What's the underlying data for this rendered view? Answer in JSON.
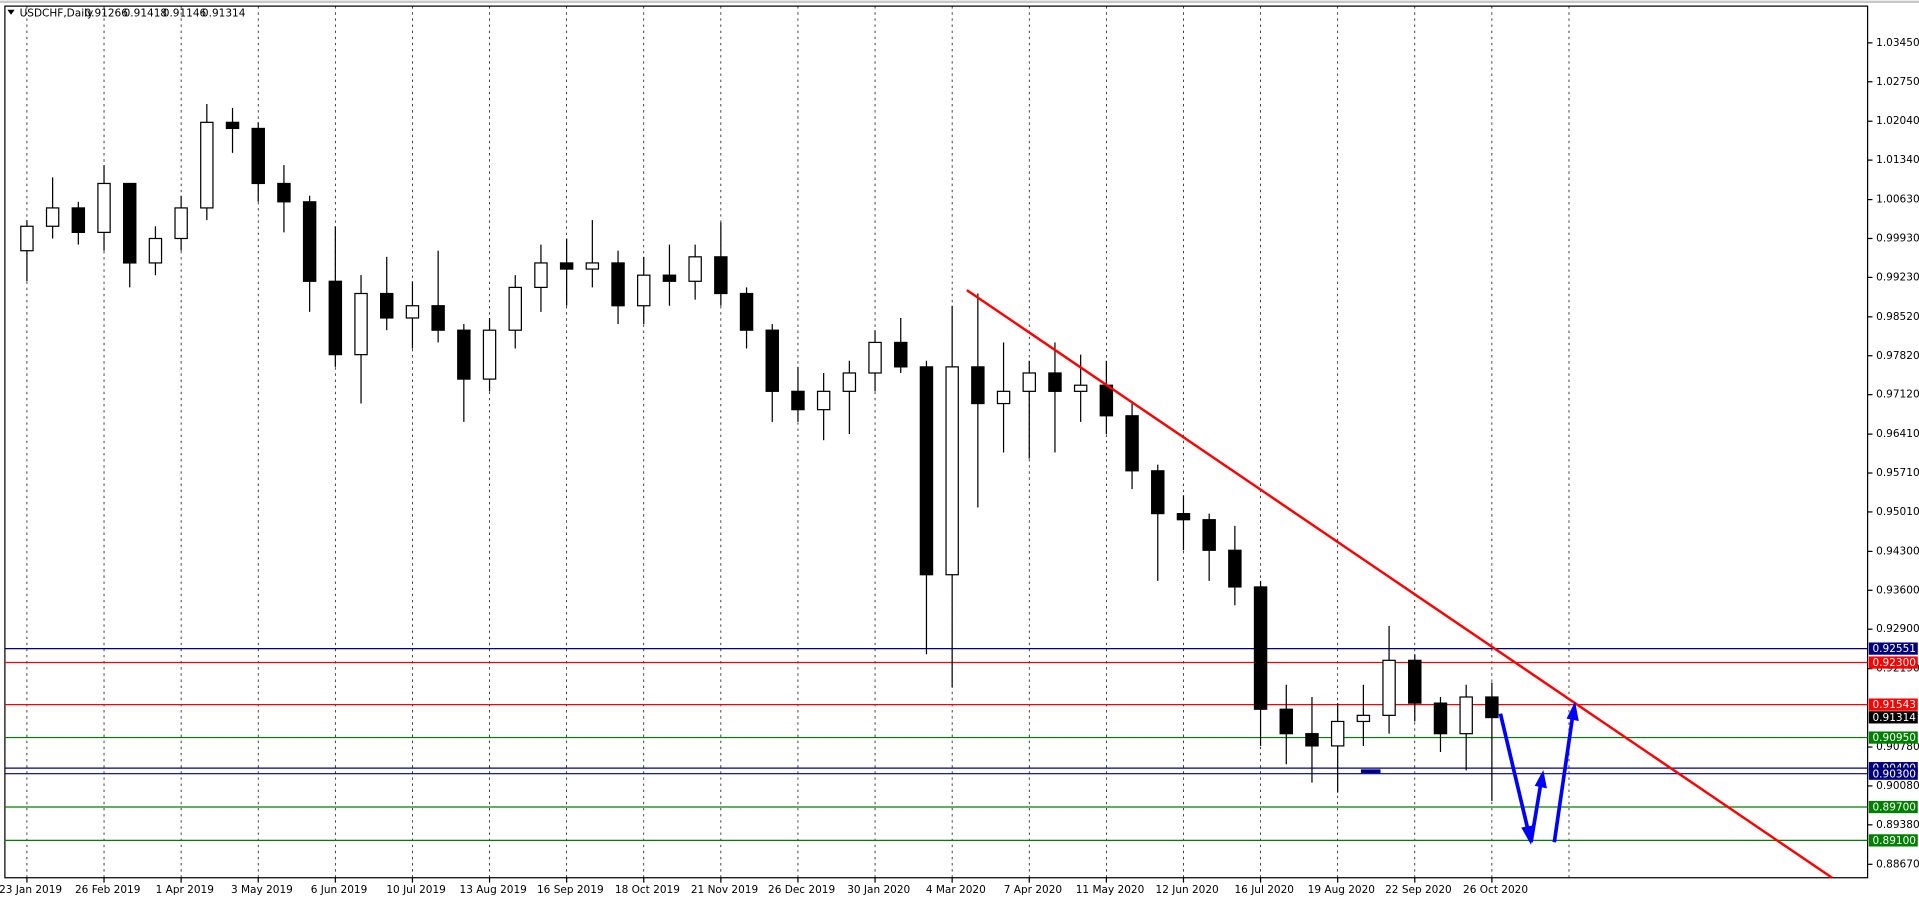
{
  "chart_data": {
    "type": "candlestick",
    "title": "USDCHF,Daily",
    "quote": [
      0.91266,
      0.91418,
      0.91146,
      0.91314
    ],
    "categories": [
      "23 Jan 2019",
      null,
      null,
      "26 Feb 2019",
      null,
      null,
      "1 Apr 2019",
      null,
      null,
      "3 May 2019",
      null,
      null,
      "6 Jun 2019",
      null,
      null,
      "10 Jul 2019",
      null,
      null,
      "13 Aug 2019",
      null,
      null,
      "16 Sep 2019",
      null,
      null,
      "18 Oct 2019",
      null,
      null,
      "21 Nov 2019",
      null,
      null,
      "26 Dec 2019",
      null,
      null,
      "30 Jan 2020",
      null,
      null,
      "4 Mar 2020",
      null,
      null,
      "7 Apr 2020",
      null,
      null,
      "11 May 2020",
      null,
      null,
      "12 Jun 2020",
      null,
      null,
      "16 Jul 2020",
      null,
      null,
      "19 Aug 2020",
      null,
      null,
      "22 Sep 2020",
      null,
      null,
      "26 Oct 2020"
    ],
    "open": [
      0.9971,
      1.0015,
      1.0048,
      1.0004,
      1.0092,
      0.9949,
      0.9993,
      1.0048,
      1.0202,
      1.0191,
      1.0092,
      1.0059,
      0.9916,
      0.9784,
      0.9894,
      0.985,
      0.9872,
      0.9828,
      0.974,
      0.9828,
      0.9905,
      0.9949,
      0.9938,
      0.9949,
      0.9872,
      0.9927,
      0.9916,
      0.996,
      0.9894,
      0.9828,
      0.9718,
      0.9685,
      0.9718,
      0.9751,
      0.9806,
      0.9762,
      0.9388,
      0.9762,
      0.9696,
      0.9718,
      0.9751,
      0.9718,
      0.9729,
      0.9674,
      0.9575,
      0.9498,
      0.9487,
      0.9432,
      0.9366,
      0.9146,
      0.9102,
      0.908,
      0.9124,
      0.9135,
      0.9234,
      0.9157,
      0.9102,
      0.9168
    ],
    "high": [
      1.0026,
      1.0103,
      1.0059,
      1.0125,
      1.0092,
      1.0015,
      1.007,
      1.0235,
      1.0228,
      1.0202,
      1.0125,
      1.007,
      1.0015,
      0.9927,
      0.996,
      0.9916,
      0.9971,
      0.9839,
      0.985,
      0.9927,
      0.9982,
      0.9993,
      1.0026,
      0.9971,
      0.996,
      0.9982,
      0.9982,
      1.0022,
      0.9905,
      0.9839,
      0.9762,
      0.9751,
      0.9773,
      0.9828,
      0.985,
      0.9773,
      0.9872,
      0.9894,
      0.9806,
      0.9773,
      0.9806,
      0.9784,
      0.9773,
      0.9696,
      0.9586,
      0.9531,
      0.9498,
      0.9476,
      0.9377,
      0.919,
      0.9168,
      0.9157,
      0.919,
      0.9296,
      0.9245,
      0.9168,
      0.919,
      0.9194
    ],
    "low": [
      0.9916,
      0.9993,
      0.9982,
      0.9971,
      0.9905,
      0.9927,
      0.9971,
      1.0026,
      1.0147,
      1.0059,
      1.0004,
      0.9861,
      0.9762,
      0.9696,
      0.9828,
      0.9795,
      0.9806,
      0.9663,
      0.9718,
      0.9795,
      0.9861,
      0.9872,
      0.9905,
      0.9839,
      0.9839,
      0.9872,
      0.9883,
      0.9872,
      0.9795,
      0.9663,
      0.9663,
      0.963,
      0.9641,
      0.9718,
      0.9751,
      0.9245,
      0.9186,
      0.9509,
      0.9608,
      0.9597,
      0.9608,
      0.9663,
      0.9641,
      0.9542,
      0.9377,
      0.9432,
      0.9377,
      0.9333,
      0.908,
      0.9047,
      0.9014,
      0.8996,
      0.908,
      0.9102,
      0.9124,
      0.9069,
      0.9036,
      0.8981
    ],
    "close": [
      1.0015,
      1.0048,
      1.0004,
      1.0092,
      0.9949,
      0.9993,
      1.0048,
      1.0202,
      1.0191,
      1.0092,
      1.0059,
      0.9916,
      0.9784,
      0.9894,
      0.985,
      0.9872,
      0.9828,
      0.974,
      0.9828,
      0.9905,
      0.9949,
      0.9938,
      0.9949,
      0.9872,
      0.9927,
      0.9916,
      0.996,
      0.9894,
      0.9828,
      0.9718,
      0.9685,
      0.9718,
      0.9751,
      0.9806,
      0.9762,
      0.9388,
      0.9762,
      0.9696,
      0.9718,
      0.9751,
      0.9718,
      0.9729,
      0.9674,
      0.9575,
      0.9498,
      0.9487,
      0.9432,
      0.9366,
      0.9146,
      0.9102,
      0.908,
      0.9124,
      0.9135,
      0.9234,
      0.9157,
      0.9102,
      0.9168,
      0.9131
    ],
    "ylim": [
      0.88428,
      1.04111
    ],
    "yticks": [
      {
        "value": 1.0345,
        "label": "1.03450"
      },
      {
        "value": 1.0275,
        "label": "1.02750"
      },
      {
        "value": 1.0204,
        "label": "1.02040"
      },
      {
        "value": 1.0134,
        "label": "1.01340"
      },
      {
        "value": 1.0063,
        "label": "1.00630"
      },
      {
        "value": 0.9993,
        "label": "0.99930"
      },
      {
        "value": 0.9923,
        "label": "0.99230"
      },
      {
        "value": 0.9852,
        "label": "0.98520"
      },
      {
        "value": 0.9782,
        "label": "0.97820"
      },
      {
        "value": 0.9712,
        "label": "0.97120"
      },
      {
        "value": 0.9641,
        "label": "0.96410"
      },
      {
        "value": 0.9571,
        "label": "0.95710"
      },
      {
        "value": 0.9501,
        "label": "0.95010"
      },
      {
        "value": 0.943,
        "label": "0.94300"
      },
      {
        "value": 0.936,
        "label": "0.93600"
      },
      {
        "value": 0.929,
        "label": "0.92900"
      },
      {
        "value": 0.9219,
        "label": "0.92190"
      },
      {
        "value": 0.9078,
        "label": "0.90780"
      },
      {
        "value": 0.9008,
        "label": "0.90080"
      },
      {
        "value": 0.8938,
        "label": "0.89380"
      },
      {
        "value": 0.8867,
        "label": "0.88670"
      }
    ],
    "levels": [
      {
        "value": 0.92551,
        "label": "0.92551",
        "color": "#000080"
      },
      {
        "value": 0.923,
        "label": "0.92300",
        "color": "#ff0000"
      },
      {
        "value": 0.91543,
        "label": "0.91543",
        "color": "#ff0000"
      },
      {
        "value": 0.9095,
        "label": "0.90950",
        "color": "#008000"
      },
      {
        "value": 0.904,
        "label": "0.90400",
        "color": "#000080"
      },
      {
        "value": 0.903,
        "label": "0.90300",
        "color": "#000080"
      },
      {
        "value": 0.897,
        "label": "0.89700",
        "color": "#008000"
      },
      {
        "value": 0.891,
        "label": "0.89100",
        "color": "#008000"
      }
    ],
    "last": 0.91314,
    "grid": true
  }
}
